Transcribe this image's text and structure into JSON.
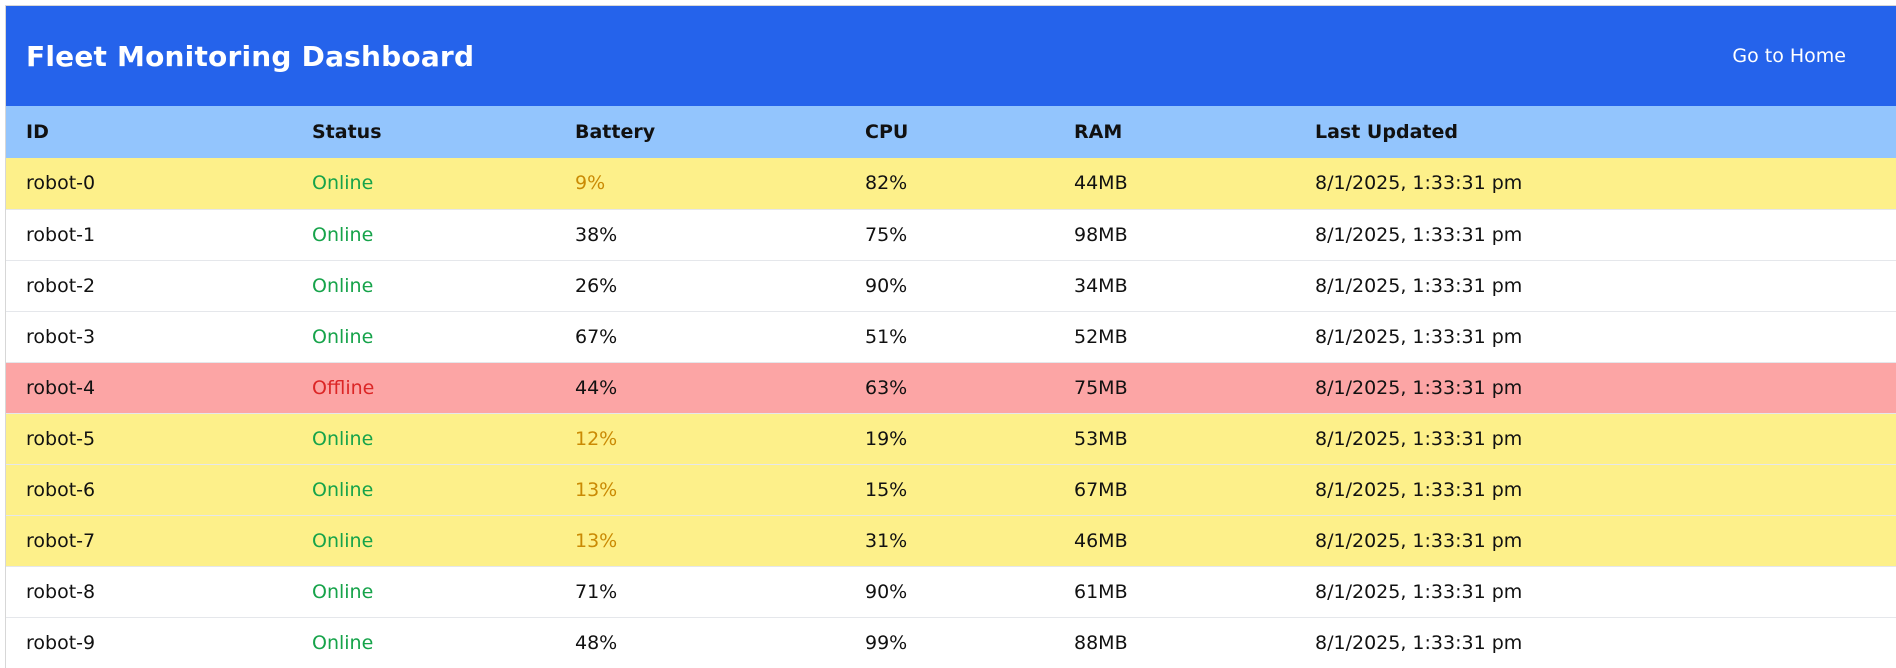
{
  "header": {
    "title": "Fleet Monitoring Dashboard",
    "home_link": "Go to Home"
  },
  "table": {
    "columns": [
      "ID",
      "Status",
      "Battery",
      "CPU",
      "RAM",
      "Last Updated"
    ],
    "rows": [
      {
        "id": "robot-0",
        "status": "Online",
        "battery": "9%",
        "cpu": "82%",
        "ram": "44MB",
        "updated": "8/1/2025, 1:33:31 pm",
        "row_style": "warn",
        "battery_style": "low",
        "status_style": "online"
      },
      {
        "id": "robot-1",
        "status": "Online",
        "battery": "38%",
        "cpu": "75%",
        "ram": "98MB",
        "updated": "8/1/2025, 1:33:31 pm",
        "row_style": "normal",
        "battery_style": "normal",
        "status_style": "online"
      },
      {
        "id": "robot-2",
        "status": "Online",
        "battery": "26%",
        "cpu": "90%",
        "ram": "34MB",
        "updated": "8/1/2025, 1:33:31 pm",
        "row_style": "normal",
        "battery_style": "normal",
        "status_style": "online"
      },
      {
        "id": "robot-3",
        "status": "Online",
        "battery": "67%",
        "cpu": "51%",
        "ram": "52MB",
        "updated": "8/1/2025, 1:33:31 pm",
        "row_style": "normal",
        "battery_style": "normal",
        "status_style": "online"
      },
      {
        "id": "robot-4",
        "status": "Offline",
        "battery": "44%",
        "cpu": "63%",
        "ram": "75MB",
        "updated": "8/1/2025, 1:33:31 pm",
        "row_style": "offline",
        "battery_style": "normal",
        "status_style": "offline"
      },
      {
        "id": "robot-5",
        "status": "Online",
        "battery": "12%",
        "cpu": "19%",
        "ram": "53MB",
        "updated": "8/1/2025, 1:33:31 pm",
        "row_style": "warn",
        "battery_style": "low",
        "status_style": "online"
      },
      {
        "id": "robot-6",
        "status": "Online",
        "battery": "13%",
        "cpu": "15%",
        "ram": "67MB",
        "updated": "8/1/2025, 1:33:31 pm",
        "row_style": "warn",
        "battery_style": "low",
        "status_style": "online"
      },
      {
        "id": "robot-7",
        "status": "Online",
        "battery": "13%",
        "cpu": "31%",
        "ram": "46MB",
        "updated": "8/1/2025, 1:33:31 pm",
        "row_style": "warn",
        "battery_style": "low",
        "status_style": "online"
      },
      {
        "id": "robot-8",
        "status": "Online",
        "battery": "71%",
        "cpu": "90%",
        "ram": "61MB",
        "updated": "8/1/2025, 1:33:31 pm",
        "row_style": "normal",
        "battery_style": "normal",
        "status_style": "online"
      },
      {
        "id": "robot-9",
        "status": "Online",
        "battery": "48%",
        "cpu": "99%",
        "ram": "88MB",
        "updated": "8/1/2025, 1:33:31 pm",
        "row_style": "normal",
        "battery_style": "normal",
        "status_style": "online"
      }
    ]
  },
  "colors": {
    "header_bg": "#2563eb",
    "table_header_bg": "#93c5fd",
    "warn_row_bg": "#fdf08a",
    "offline_row_bg": "#fca5a5",
    "online_text": "#16a34a",
    "offline_text": "#dc2626",
    "low_battery_text": "#ca8a04"
  }
}
